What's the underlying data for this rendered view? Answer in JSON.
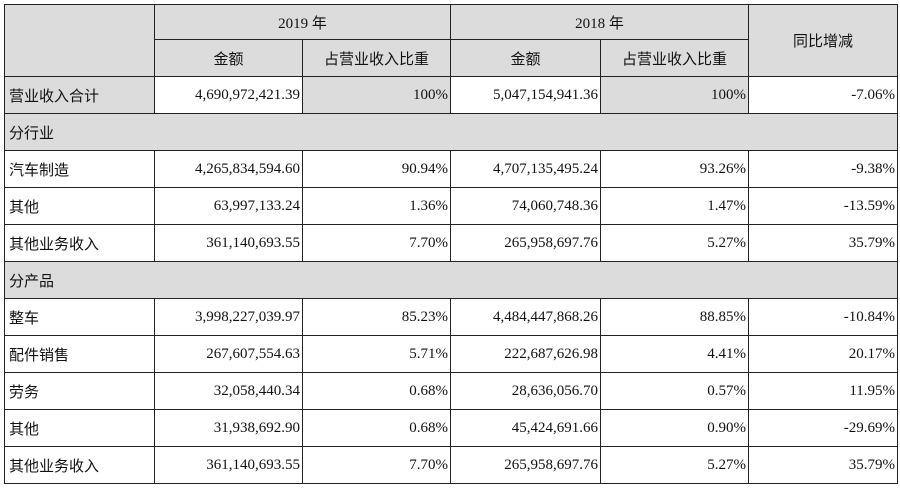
{
  "header": {
    "year_2019": "2019 年",
    "year_2018": "2018 年",
    "yoy": "同比增减",
    "amount": "金额",
    "ratio": "占营业收入比重"
  },
  "total": {
    "label": "营业收入合计",
    "amount_2019": "4,690,972,421.39",
    "ratio_2019": "100%",
    "amount_2018": "5,047,154,941.36",
    "ratio_2018": "100%",
    "yoy": "-7.06%"
  },
  "section_industry": "分行业",
  "industry_rows": [
    {
      "label": "汽车制造",
      "amount_2019": "4,265,834,594.60",
      "ratio_2019": "90.94%",
      "amount_2018": "4,707,135,495.24",
      "ratio_2018": "93.26%",
      "yoy": "-9.38%"
    },
    {
      "label": "其他",
      "amount_2019": "63,997,133.24",
      "ratio_2019": "1.36%",
      "amount_2018": "74,060,748.36",
      "ratio_2018": "1.47%",
      "yoy": "-13.59%"
    },
    {
      "label": "其他业务收入",
      "amount_2019": "361,140,693.55",
      "ratio_2019": "7.70%",
      "amount_2018": "265,958,697.76",
      "ratio_2018": "5.27%",
      "yoy": "35.79%"
    }
  ],
  "section_product": "分产品",
  "product_rows": [
    {
      "label": "整车",
      "amount_2019": "3,998,227,039.97",
      "ratio_2019": "85.23%",
      "amount_2018": "4,484,447,868.26",
      "ratio_2018": "88.85%",
      "yoy": "-10.84%"
    },
    {
      "label": "配件销售",
      "amount_2019": "267,607,554.63",
      "ratio_2019": "5.71%",
      "amount_2018": "222,687,626.98",
      "ratio_2018": "4.41%",
      "yoy": "20.17%"
    },
    {
      "label": "劳务",
      "amount_2019": "32,058,440.34",
      "ratio_2019": "0.68%",
      "amount_2018": "28,636,056.70",
      "ratio_2018": "0.57%",
      "yoy": "11.95%"
    },
    {
      "label": "其他",
      "amount_2019": "31,938,692.90",
      "ratio_2019": "0.68%",
      "amount_2018": "45,424,691.66",
      "ratio_2018": "0.90%",
      "yoy": "-29.69%"
    },
    {
      "label": "其他业务收入",
      "amount_2019": "361,140,693.55",
      "ratio_2019": "7.70%",
      "amount_2018": "265,958,697.76",
      "ratio_2018": "5.27%",
      "yoy": "35.79%"
    }
  ]
}
